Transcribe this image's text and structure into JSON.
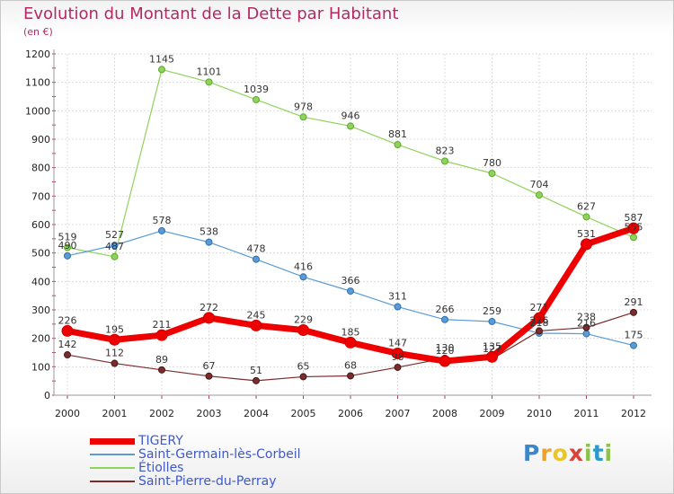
{
  "chart_data": {
    "type": "line",
    "title": "Evolution du Montant de la Dette par Habitant",
    "subtitle": "(en €)",
    "x": [
      "2000",
      "2001",
      "2002",
      "2003",
      "2004",
      "2005",
      "2006",
      "2007",
      "2008",
      "2009",
      "2010",
      "2011",
      "2012"
    ],
    "ylim": [
      0,
      1200
    ],
    "yticks": [
      0,
      100,
      200,
      300,
      400,
      500,
      600,
      700,
      800,
      900,
      1000,
      1100,
      1200
    ],
    "grid": true,
    "legend_position": "bottom-left",
    "series": [
      {
        "name": "TIGERY",
        "color": "#ee0000",
        "values": [
          226,
          195,
          211,
          272,
          245,
          229,
          185,
          147,
          120,
          135,
          271,
          531,
          587
        ]
      },
      {
        "name": "Saint-Germain-lès-Corbeil",
        "color": "#5b9bd5",
        "values": [
          490,
          527,
          578,
          538,
          478,
          416,
          366,
          311,
          266,
          259,
          218,
          216,
          175
        ]
      },
      {
        "name": "Étiolles",
        "color": "#8fd35a",
        "values": [
          519,
          487,
          1145,
          1101,
          1039,
          978,
          946,
          881,
          823,
          780,
          704,
          627,
          555
        ]
      },
      {
        "name": "Saint-Pierre-du-Perray",
        "color": "#7b2c2c",
        "values": [
          142,
          112,
          89,
          67,
          51,
          65,
          68,
          98,
          130,
          127,
          226,
          238,
          291
        ]
      }
    ]
  },
  "logo": {
    "p": "P",
    "r": "r",
    "o": "o",
    "x": "x",
    "i": "i",
    "t": "t",
    "i2": "i"
  }
}
